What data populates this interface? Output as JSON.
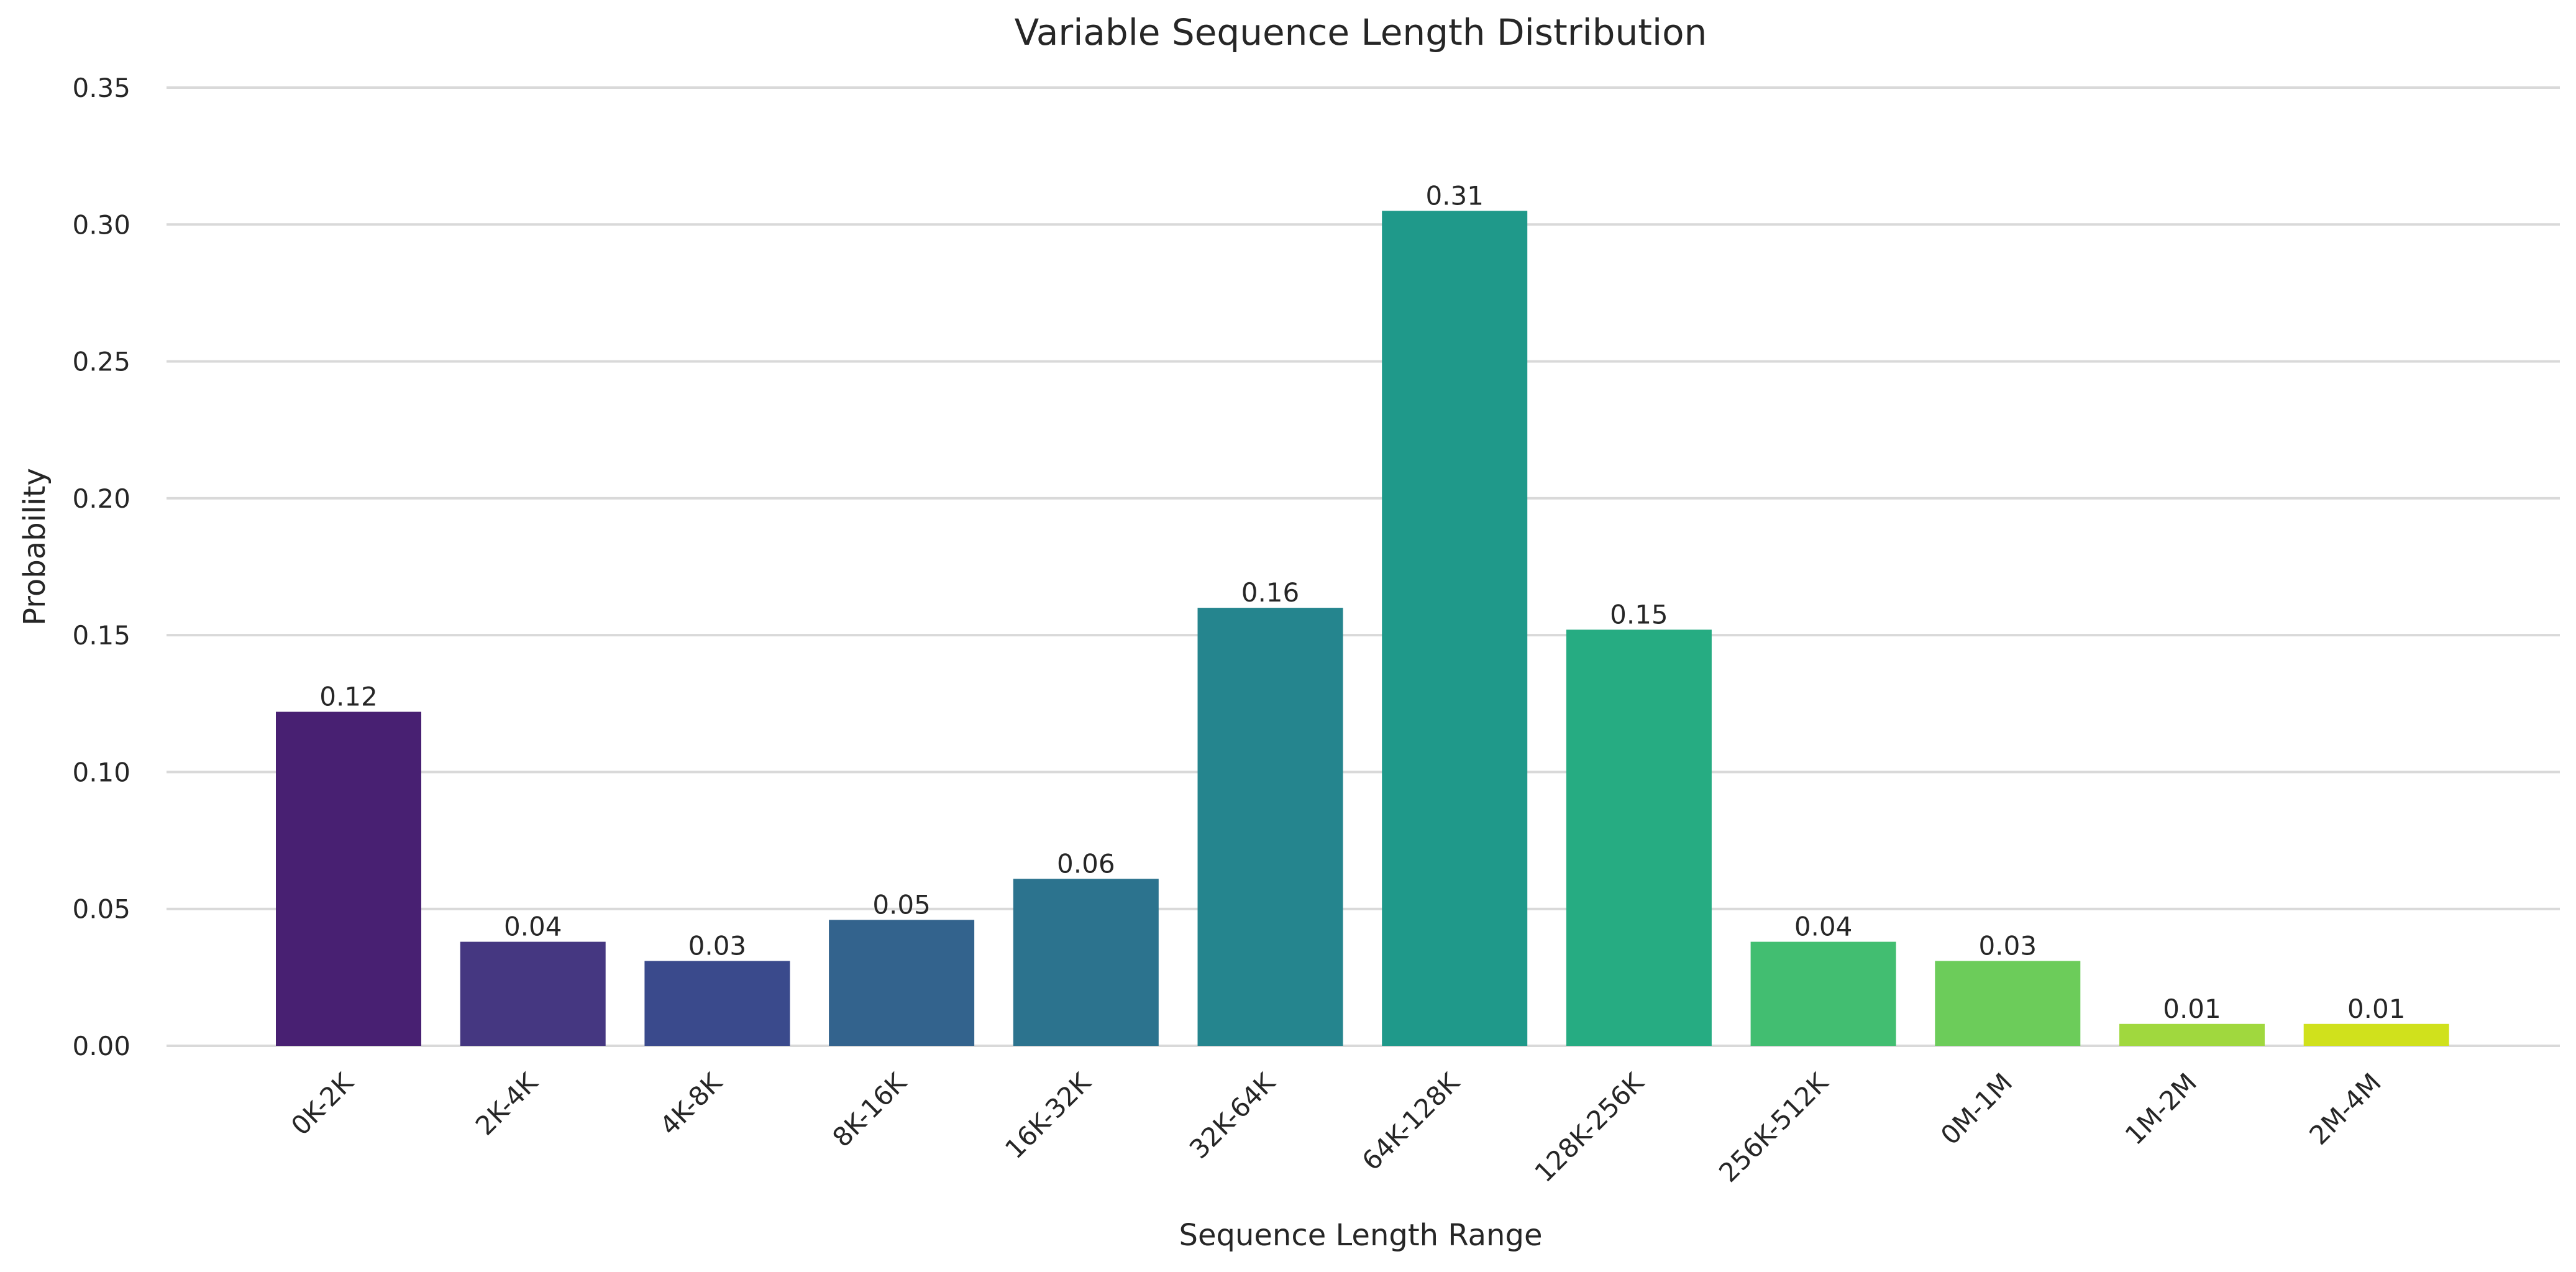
{
  "chart_data": {
    "type": "bar",
    "title": "Variable Sequence Length Distribution",
    "xlabel": "Sequence Length Range",
    "ylabel": "Probability",
    "categories": [
      "0K-2K",
      "2K-4K",
      "4K-8K",
      "8K-16K",
      "16K-32K",
      "32K-64K",
      "64K-128K",
      "128K-256K",
      "256K-512K",
      "0M-1M",
      "1M-2M",
      "2M-4M"
    ],
    "values": [
      0.122,
      0.038,
      0.031,
      0.046,
      0.061,
      0.16,
      0.305,
      0.152,
      0.038,
      0.031,
      0.008,
      0.008
    ],
    "data_labels": [
      "0.12",
      "0.04",
      "0.03",
      "0.05",
      "0.06",
      "0.16",
      "0.31",
      "0.15",
      "0.04",
      "0.03",
      "0.01",
      "0.01"
    ],
    "colors": [
      "#482072",
      "#453781",
      "#3a4a8c",
      "#33638d",
      "#2c738e",
      "#25858e",
      "#1f998a",
      "#26ac82",
      "#42be71",
      "#6ccc5a",
      "#a0d83e",
      "#d0e11c"
    ],
    "yticks": [
      "0.00",
      "0.05",
      "0.10",
      "0.15",
      "0.20",
      "0.25",
      "0.30",
      "0.35"
    ],
    "ylim": [
      0,
      0.35
    ],
    "grid": "horizontal",
    "legend": "none"
  }
}
